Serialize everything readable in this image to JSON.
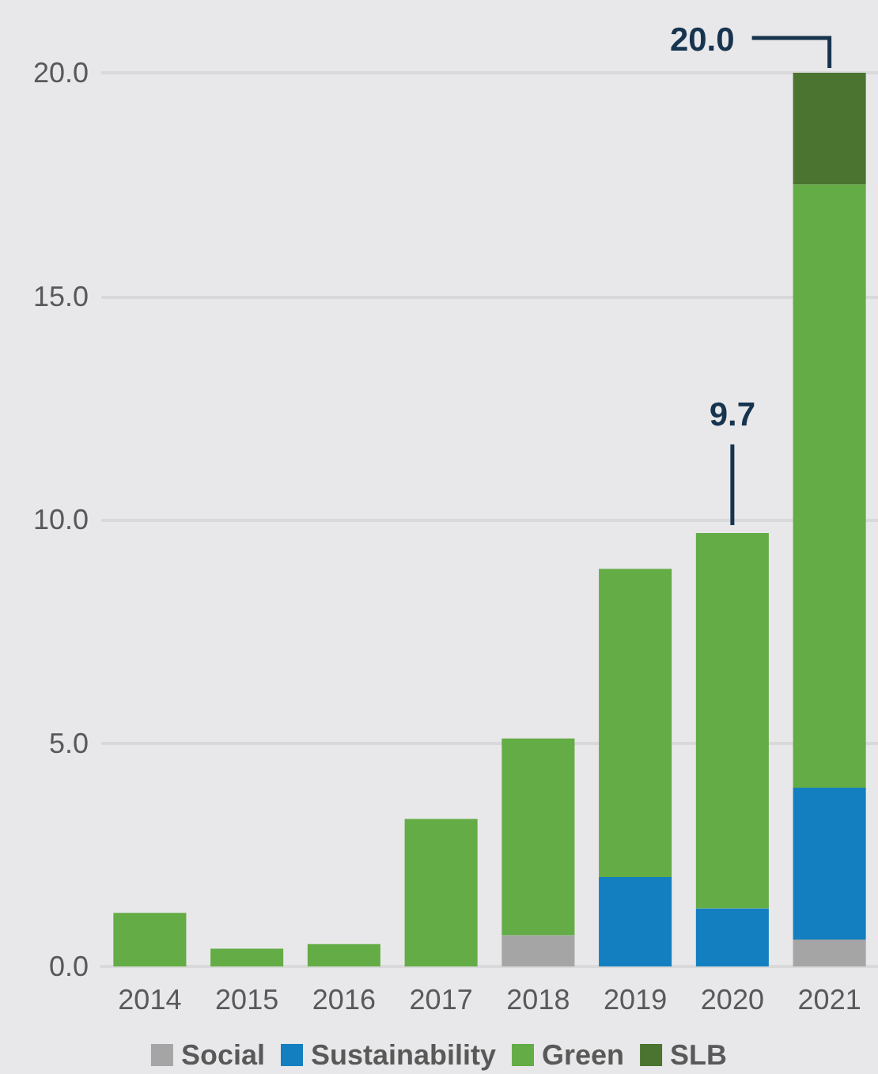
{
  "chart_data": {
    "type": "bar",
    "stacked": true,
    "categories": [
      "2014",
      "2015",
      "2016",
      "2017",
      "2018",
      "2019",
      "2020",
      "2021"
    ],
    "series": [
      {
        "name": "Social",
        "color": "#a5a5a5",
        "values": [
          0,
          0,
          0,
          0,
          0.7,
          0,
          0,
          0.6
        ]
      },
      {
        "name": "Sustainability",
        "color": "#137fc0",
        "values": [
          0,
          0,
          0,
          0,
          0,
          2.0,
          1.3,
          3.4
        ]
      },
      {
        "name": "Green",
        "color": "#64ac45",
        "values": [
          1.2,
          0.4,
          0.5,
          3.3,
          4.4,
          6.9,
          8.4,
          13.5
        ]
      },
      {
        "name": "SLB",
        "color": "#4a7430",
        "values": [
          0,
          0,
          0,
          0,
          0,
          0,
          0,
          2.5
        ]
      }
    ],
    "ylim": [
      0,
      20
    ],
    "yticks": [
      {
        "value": 0,
        "label": "0.0"
      },
      {
        "value": 5,
        "label": "5.0"
      },
      {
        "value": 10,
        "label": "10.0"
      },
      {
        "value": 15,
        "label": "15.0"
      },
      {
        "value": 20,
        "label": "20.0"
      }
    ],
    "grid": "y",
    "legend": "bottom",
    "annotations": [
      {
        "text": "9.7",
        "x": "2020",
        "y": 9.7
      },
      {
        "text": "20.0",
        "x": "2021",
        "y": 20.0
      }
    ]
  }
}
